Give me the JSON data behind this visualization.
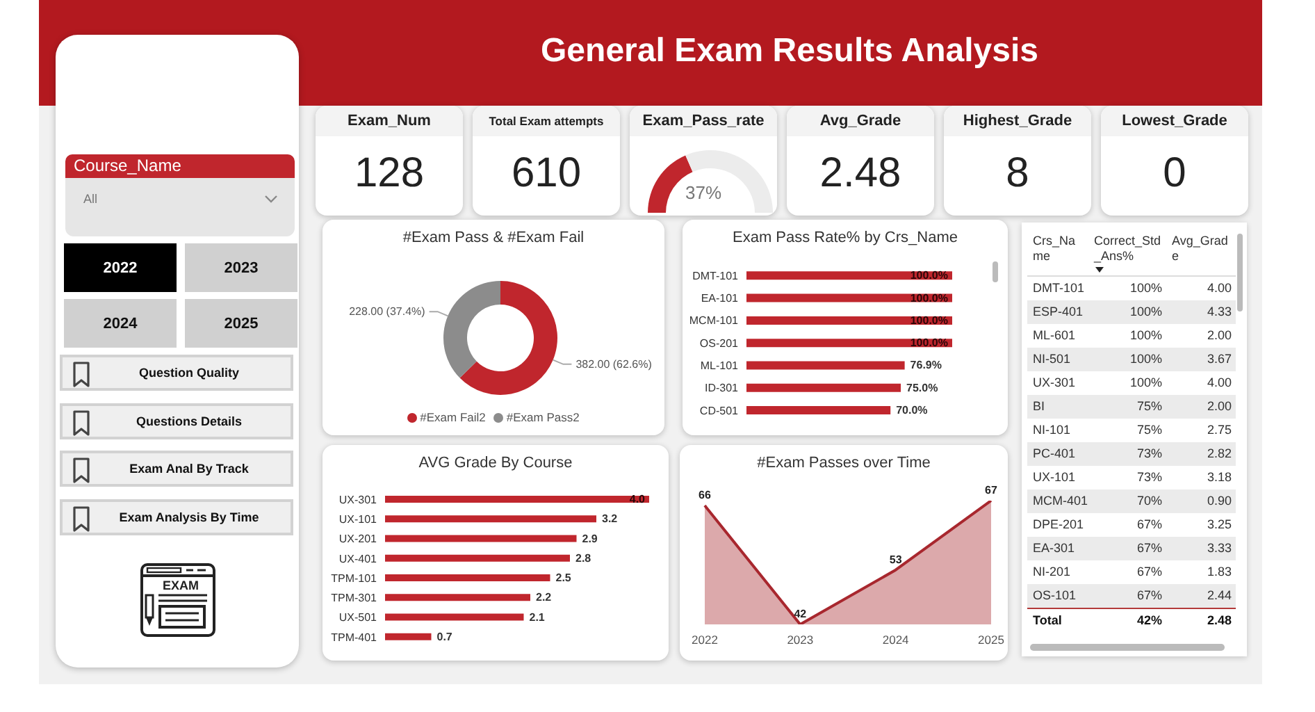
{
  "chart_data": [
    {
      "type": "other",
      "title": "General Exam Results Analysis"
    },
    {
      "type": "other",
      "title": "Course_Name",
      "annotations": [
        "All",
        "2022",
        "2023",
        "2024",
        "2025",
        "Question Quality",
        "Questions Details",
        "Exam Anal By Track",
        "Exam Analysis By Time",
        "EXAM"
      ]
    },
    {
      "type": "other",
      "categories": [
        "Exam_Num",
        "Total Exam attempts"
      ],
      "values": [
        128,
        610
      ],
      "data_labels": true
    },
    {
      "type": "donut",
      "title": "Exam_Pass_rate",
      "categories": [
        null,
        null
      ],
      "values": [
        37,
        63
      ],
      "colors": [
        "#c0262d",
        "#ececec"
      ],
      "value_labels": [
        "37%",
        null
      ]
    },
    {
      "type": "other",
      "categories": [
        "Avg_Grade",
        "Highest_Grade",
        "Lowest_Grade"
      ],
      "values": [
        2.48,
        8,
        0
      ],
      "data_labels": true
    },
    {
      "type": "donut",
      "title": "#Exam Pass & #Exam Fail",
      "categories": [
        "#Exam Fail2",
        "#Exam Pass2"
      ],
      "values": [
        382,
        228
      ],
      "colors": [
        "#c0262d",
        "#8c8c8c"
      ],
      "value_labels": [
        "382.00 (62.6%)",
        "228.00 (37.4%)"
      ],
      "legend": "bottom"
    },
    {
      "type": "bar",
      "orientation": "horizontal",
      "title": "Exam Pass Rate% by Crs_Name",
      "categories": [
        "DMT-101",
        "EA-101",
        "MCM-101",
        "OS-201",
        "ML-101",
        "ID-301",
        "CD-501"
      ],
      "values": [
        100,
        100,
        100,
        100,
        76.9,
        75,
        70
      ],
      "color": "#c0262d",
      "value_labels": [
        "100.0%",
        "100.0%",
        "100.0%",
        "100.0%",
        "76.9%",
        "75.0%",
        "70.0%"
      ]
    },
    {
      "type": "other",
      "xlabel": "Crs_Name",
      "categories": [
        "DMT-101",
        "ESP-401",
        "ML-601",
        "NI-501",
        "UX-301",
        "BI",
        "NI-101",
        "PC-401",
        "UX-101",
        "MCM-401",
        "DPE-201",
        "EA-301",
        "NI-201",
        "OS-101"
      ],
      "series": [
        {
          "name": "Correct_Std_Ans%",
          "colors": [
            "#ffffff",
            "#ebebeb",
            "#ffffff",
            "#ebebeb",
            "#ffffff",
            "#ebebeb",
            "#ffffff",
            "#ebebeb",
            "#ffffff",
            "#ebebeb",
            "#ffffff",
            "#ebebeb",
            "#ffffff",
            "#ebebeb"
          ],
          "values": [
            100,
            100,
            100,
            100,
            100,
            75,
            75,
            73,
            73,
            70,
            67,
            67,
            67,
            67
          ],
          "value_labels": [
            "100%",
            "100%",
            "100%",
            "100%",
            "100%",
            "75%",
            "75%",
            "73%",
            "73%",
            "70%",
            "67%",
            "67%",
            "67%",
            "67%"
          ]
        },
        {
          "name": "Avg_Grade",
          "colors": [
            "#ffffff",
            "#ebebeb",
            "#ffffff",
            "#ebebeb",
            "#ffffff",
            "#ebebeb",
            "#ffffff",
            "#ebebeb",
            "#ffffff",
            "#ebebeb",
            "#ffffff",
            "#ebebeb",
            "#ffffff",
            "#ebebeb"
          ],
          "values": [
            4.0,
            4.33,
            2.0,
            3.67,
            4.0,
            2.0,
            2.75,
            2.82,
            3.18,
            0.9,
            3.25,
            3.33,
            1.83,
            2.44
          ],
          "value_labels": [
            "4.00",
            "4.33",
            "2.00",
            "3.67",
            "4.00",
            "2.00",
            "2.75",
            "2.82",
            "3.18",
            "0.90",
            "3.25",
            "3.33",
            "1.83",
            "2.44"
          ]
        }
      ],
      "totals": [
        "42%",
        "2.48"
      ],
      "annotations": [
        "Total"
      ]
    },
    {
      "type": "bar",
      "orientation": "horizontal",
      "title": "AVG Grade By Course",
      "categories": [
        "UX-301",
        "UX-101",
        "UX-201",
        "UX-401",
        "TPM-101",
        "TPM-301",
        "UX-501",
        "TPM-401"
      ],
      "values": [
        4.0,
        3.2,
        2.9,
        2.8,
        2.5,
        2.2,
        2.1,
        0.7
      ],
      "color": "#c0262d",
      "value_labels": [
        "4.0",
        "3.2",
        "2.9",
        "2.8",
        "2.5",
        "2.2",
        "2.1",
        "0.7"
      ]
    },
    {
      "type": "area",
      "title": "#Exam Passes over Time",
      "categories": [
        "2022",
        "2023",
        "2024",
        "2025"
      ],
      "values": [
        66,
        42,
        53,
        67
      ],
      "color": "#a8272e",
      "data_labels": true
    }
  ]
}
